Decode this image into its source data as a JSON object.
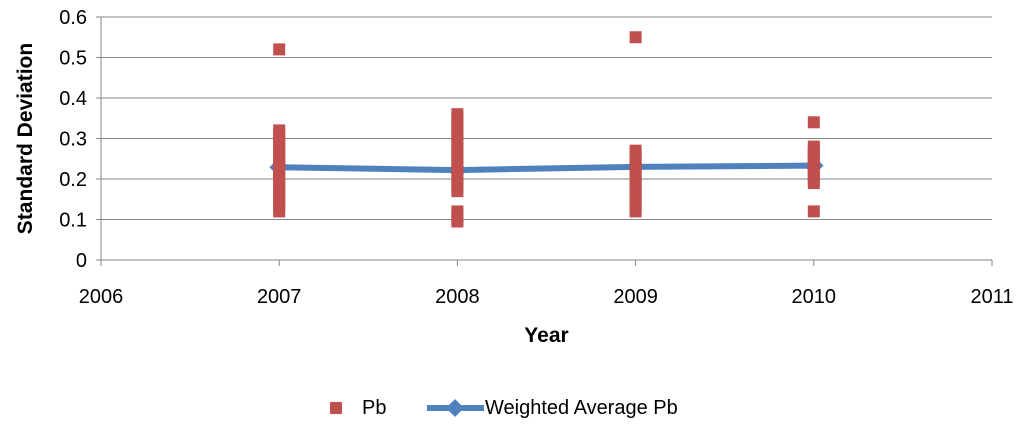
{
  "chart_data": {
    "type": "scatter",
    "xlabel": "Year",
    "ylabel": "Standard Deviation",
    "xlim": [
      2006,
      2011
    ],
    "ylim": [
      0,
      0.6
    ],
    "x_ticks": [
      "2006",
      "2007",
      "2008",
      "2009",
      "2010",
      "2011"
    ],
    "y_ticks": [
      "0",
      "0.1",
      "0.2",
      "0.3",
      "0.4",
      "0.5",
      "0.6"
    ],
    "grid": "horizontal",
    "legend_position": "bottom",
    "series": [
      {
        "name": "Pb",
        "kind": "scatter",
        "color": "#C0504D",
        "points": [
          [
            2007,
            0.52
          ],
          [
            2007,
            0.32
          ],
          [
            2007,
            0.31
          ],
          [
            2007,
            0.3
          ],
          [
            2007,
            0.29
          ],
          [
            2007,
            0.28
          ],
          [
            2007,
            0.27
          ],
          [
            2007,
            0.26
          ],
          [
            2007,
            0.25
          ],
          [
            2007,
            0.24
          ],
          [
            2007,
            0.23
          ],
          [
            2007,
            0.22
          ],
          [
            2007,
            0.21
          ],
          [
            2007,
            0.2
          ],
          [
            2007,
            0.19
          ],
          [
            2007,
            0.18
          ],
          [
            2007,
            0.17
          ],
          [
            2007,
            0.16
          ],
          [
            2007,
            0.15
          ],
          [
            2007,
            0.14
          ],
          [
            2007,
            0.13
          ],
          [
            2007,
            0.12
          ],
          [
            2008,
            0.36
          ],
          [
            2008,
            0.35
          ],
          [
            2008,
            0.34
          ],
          [
            2008,
            0.33
          ],
          [
            2008,
            0.32
          ],
          [
            2008,
            0.31
          ],
          [
            2008,
            0.3
          ],
          [
            2008,
            0.29
          ],
          [
            2008,
            0.28
          ],
          [
            2008,
            0.27
          ],
          [
            2008,
            0.26
          ],
          [
            2008,
            0.25
          ],
          [
            2008,
            0.24
          ],
          [
            2008,
            0.23
          ],
          [
            2008,
            0.22
          ],
          [
            2008,
            0.21
          ],
          [
            2008,
            0.2
          ],
          [
            2008,
            0.19
          ],
          [
            2008,
            0.18
          ],
          [
            2008,
            0.17
          ],
          [
            2008,
            0.12
          ],
          [
            2008,
            0.11
          ],
          [
            2008,
            0.1
          ],
          [
            2008,
            0.095
          ],
          [
            2009,
            0.55
          ],
          [
            2009,
            0.27
          ],
          [
            2009,
            0.26
          ],
          [
            2009,
            0.25
          ],
          [
            2009,
            0.24
          ],
          [
            2009,
            0.23
          ],
          [
            2009,
            0.22
          ],
          [
            2009,
            0.21
          ],
          [
            2009,
            0.2
          ],
          [
            2009,
            0.19
          ],
          [
            2009,
            0.18
          ],
          [
            2009,
            0.17
          ],
          [
            2009,
            0.16
          ],
          [
            2009,
            0.15
          ],
          [
            2009,
            0.14
          ],
          [
            2009,
            0.13
          ],
          [
            2009,
            0.12
          ],
          [
            2010,
            0.34
          ],
          [
            2010,
            0.28
          ],
          [
            2010,
            0.27
          ],
          [
            2010,
            0.26
          ],
          [
            2010,
            0.25
          ],
          [
            2010,
            0.24
          ],
          [
            2010,
            0.23
          ],
          [
            2010,
            0.22
          ],
          [
            2010,
            0.21
          ],
          [
            2010,
            0.2
          ],
          [
            2010,
            0.19
          ],
          [
            2010,
            0.12
          ]
        ]
      },
      {
        "name": "Weighted Average Pb",
        "kind": "line",
        "color": "#4F81BD",
        "points": [
          [
            2007,
            0.229
          ],
          [
            2008,
            0.222
          ],
          [
            2009,
            0.23
          ],
          [
            2010,
            0.233
          ]
        ]
      }
    ]
  }
}
